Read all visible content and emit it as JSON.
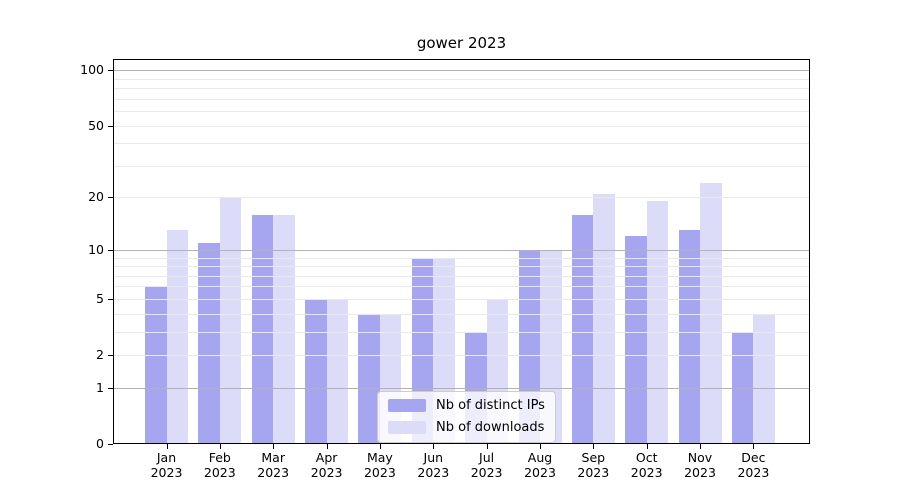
{
  "chart_data": {
    "type": "bar",
    "title": "gower 2023",
    "categories": [
      "Jan",
      "Feb",
      "Mar",
      "Apr",
      "May",
      "Jun",
      "Jul",
      "Aug",
      "Sep",
      "Oct",
      "Nov",
      "Dec"
    ],
    "year": "2023",
    "series": [
      {
        "name": "Nb of distinct IPs",
        "color": "#a5a5f0",
        "values": [
          6,
          11,
          16,
          5,
          4,
          9,
          3,
          10,
          16,
          12,
          13,
          3
        ]
      },
      {
        "name": "Nb of downloads",
        "color": "#dcdcf9",
        "values": [
          13,
          20,
          16,
          5,
          4,
          9,
          5,
          10,
          21,
          19,
          24,
          4
        ]
      }
    ],
    "xlabel": "",
    "ylabel": "",
    "yscale": "log1p",
    "ylim": [
      0,
      115
    ],
    "yticks": [
      0,
      1,
      2,
      5,
      10,
      20,
      50,
      100
    ],
    "major_gridlines": [
      1,
      10,
      100
    ],
    "minor_gridlines": [
      2,
      3,
      4,
      5,
      6,
      7,
      8,
      9,
      20,
      30,
      40,
      50,
      60,
      70,
      80,
      90
    ],
    "grid": true,
    "legend_position": "bottom-center",
    "colors": {
      "axis": "#000000",
      "major_grid": "#b2b2b6",
      "minor_grid": "#e9e9ed",
      "legend_border": "#cccccc",
      "tick_label": "#000000"
    }
  }
}
